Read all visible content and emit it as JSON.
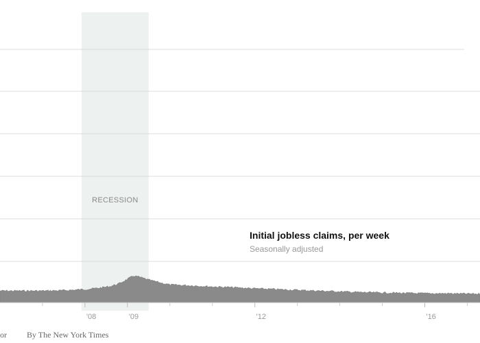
{
  "chart_data": {
    "type": "area",
    "title": "Initial jobless claims, per week",
    "subtitle": "Seasonally adjusted",
    "x_tick_labels": [
      "'08",
      "'09",
      "'12",
      "'16"
    ],
    "x_ticks": [
      2008.0,
      2009.0,
      2012.0,
      2016.0
    ],
    "xlim": [
      2006.0,
      2017.3
    ],
    "recession": {
      "label": "RECESSION",
      "start": 2007.92,
      "end": 2009.5
    },
    "gridlines": 6,
    "series": [
      {
        "color": "#8a8a8a",
        "x": [
          2006.0,
          2006.5,
          2007.0,
          2007.5,
          2008.0,
          2008.3,
          2008.6,
          2008.8,
          2009.0,
          2009.15,
          2009.3,
          2009.5,
          2009.8,
          2010.0,
          2010.5,
          2011.0,
          2011.5,
          2012.0,
          2012.5,
          2013.0,
          2013.5,
          2014.0,
          2014.5,
          2015.0,
          2015.5,
          2016.0,
          2016.5,
          2017.0,
          2017.3
        ],
        "relative_level": [
          0.31,
          0.31,
          0.31,
          0.32,
          0.35,
          0.38,
          0.43,
          0.5,
          0.62,
          0.71,
          0.67,
          0.6,
          0.52,
          0.47,
          0.45,
          0.42,
          0.4,
          0.37,
          0.35,
          0.33,
          0.31,
          0.29,
          0.27,
          0.26,
          0.25,
          0.24,
          0.24,
          0.23,
          0.23
        ]
      }
    ]
  },
  "credits": {
    "source": "or",
    "byline": "By The New York Times"
  }
}
